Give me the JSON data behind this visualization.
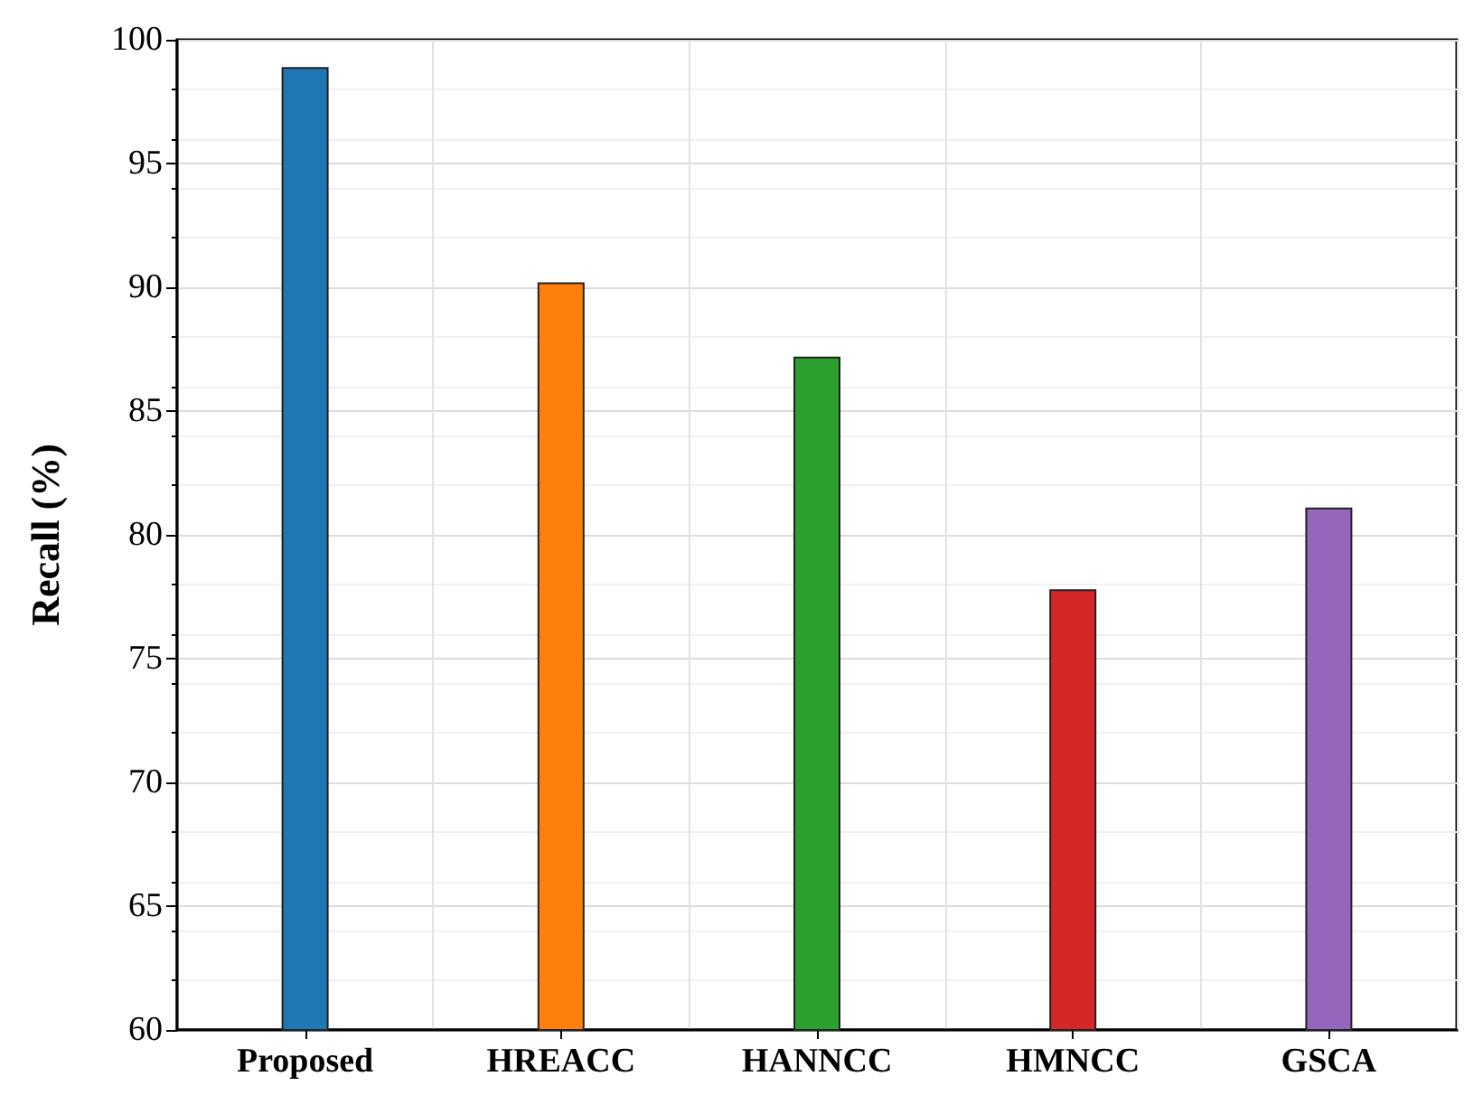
{
  "chart_data": {
    "type": "bar",
    "ylabel": "Recall (%)",
    "categories": [
      "Proposed",
      "HREACC",
      "HANNCC",
      "HMNCC",
      "GSCA"
    ],
    "values": [
      98.9,
      90.2,
      87.2,
      77.8,
      81.1
    ],
    "colors": [
      "#1f77b4",
      "#ff7f0e",
      "#2ca02c",
      "#d62728",
      "#9467bd"
    ],
    "ylim": [
      60,
      100
    ],
    "yticks": [
      60,
      65,
      70,
      75,
      80,
      85,
      90,
      95,
      100
    ],
    "grid": true
  }
}
